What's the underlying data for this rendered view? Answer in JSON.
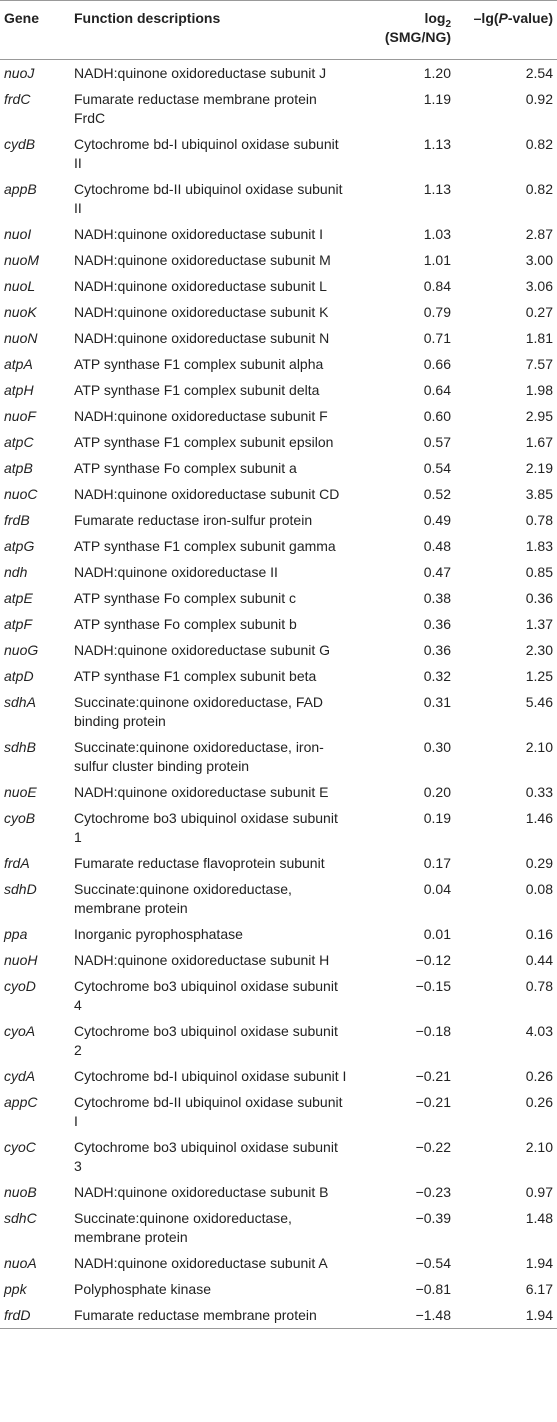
{
  "table": {
    "header": {
      "gene": "Gene",
      "function": "Function descriptions",
      "log2": {
        "base": "log",
        "sub": "2",
        "rest": "(SMG/NG)"
      },
      "p": {
        "pre": "–lg(",
        "italic": "P",
        "post": "-value)"
      }
    },
    "rows": [
      [
        "nuoJ",
        "NADH:quinone oxidoreductase subunit J",
        "1.20",
        "2.54"
      ],
      [
        "frdC",
        "Fumarate reductase membrane protein FrdC",
        "1.19",
        "0.92"
      ],
      [
        "cydB",
        "Cytochrome bd-I ubiquinol oxidase subunit II",
        "1.13",
        "0.82"
      ],
      [
        "appB",
        "Cytochrome bd-II ubiquinol oxidase subunit II",
        "1.13",
        "0.82"
      ],
      [
        "nuoI",
        "NADH:quinone oxidoreductase subunit I",
        "1.03",
        "2.87"
      ],
      [
        "nuoM",
        "NADH:quinone oxidoreductase subunit M",
        "1.01",
        "3.00"
      ],
      [
        "nuoL",
        "NADH:quinone oxidoreductase subunit L",
        "0.84",
        "3.06"
      ],
      [
        "nuoK",
        "NADH:quinone oxidoreductase subunit K",
        "0.79",
        "0.27"
      ],
      [
        "nuoN",
        "NADH:quinone oxidoreductase subunit N",
        "0.71",
        "1.81"
      ],
      [
        "atpA",
        "ATP synthase F1 complex subunit alpha",
        "0.66",
        "7.57"
      ],
      [
        "atpH",
        "ATP synthase F1 complex subunit delta",
        "0.64",
        "1.98"
      ],
      [
        "nuoF",
        "NADH:quinone oxidoreductase subunit F",
        "0.60",
        "2.95"
      ],
      [
        "atpC",
        "ATP synthase F1 complex subunit epsilon",
        "0.57",
        "1.67"
      ],
      [
        "atpB",
        "ATP synthase Fo complex subunit a",
        "0.54",
        "2.19"
      ],
      [
        "nuoC",
        "NADH:quinone oxidoreductase subunit CD",
        "0.52",
        "3.85"
      ],
      [
        "frdB",
        "Fumarate reductase iron-sulfur protein",
        "0.49",
        "0.78"
      ],
      [
        "atpG",
        "ATP synthase F1 complex subunit gamma",
        "0.48",
        "1.83"
      ],
      [
        "ndh",
        "NADH:quinone oxidoreductase II",
        "0.47",
        "0.85"
      ],
      [
        "atpE",
        "ATP synthase Fo complex subunit c",
        "0.38",
        "0.36"
      ],
      [
        "atpF",
        "ATP synthase Fo complex subunit b",
        "0.36",
        "1.37"
      ],
      [
        "nuoG",
        "NADH:quinone oxidoreductase subunit G",
        "0.36",
        "2.30"
      ],
      [
        "atpD",
        "ATP synthase F1 complex subunit beta",
        "0.32",
        "1.25"
      ],
      [
        "sdhA",
        "Succinate:quinone oxidoreductase, FAD binding protein",
        "0.31",
        "5.46"
      ],
      [
        "sdhB",
        "Succinate:quinone oxidoreductase, iron-sulfur cluster binding protein",
        "0.30",
        "2.10"
      ],
      [
        "nuoE",
        "NADH:quinone oxidoreductase subunit E",
        "0.20",
        "0.33"
      ],
      [
        "cyoB",
        "Cytochrome bo3 ubiquinol oxidase subunit 1",
        "0.19",
        "1.46"
      ],
      [
        "frdA",
        "Fumarate reductase flavoprotein subunit",
        "0.17",
        "0.29"
      ],
      [
        "sdhD",
        "Succinate:quinone oxidoreductase, membrane protein",
        "0.04",
        "0.08"
      ],
      [
        "ppa",
        "Inorganic pyrophosphatase",
        "0.01",
        "0.16"
      ],
      [
        "nuoH",
        "NADH:quinone oxidoreductase subunit H",
        "−0.12",
        "0.44"
      ],
      [
        "cyoD",
        "Cytochrome bo3 ubiquinol oxidase subunit 4",
        "−0.15",
        "0.78"
      ],
      [
        "cyoA",
        "Cytochrome bo3 ubiquinol oxidase subunit 2",
        "−0.18",
        "4.03"
      ],
      [
        "cydA",
        "Cytochrome bd-I ubiquinol oxidase subunit I",
        "−0.21",
        "0.26"
      ],
      [
        "appC",
        "Cytochrome bd-II ubiquinol oxidase subunit I",
        "−0.21",
        "0.26"
      ],
      [
        "cyoC",
        "Cytochrome bo3 ubiquinol oxidase subunit 3",
        "−0.22",
        "2.10"
      ],
      [
        "nuoB",
        "NADH:quinone oxidoreductase subunit B",
        "−0.23",
        "0.97"
      ],
      [
        "sdhC",
        "Succinate:quinone oxidoreductase, membrane protein",
        "−0.39",
        "1.48"
      ],
      [
        "nuoA",
        "NADH:quinone oxidoreductase subunit A",
        "−0.54",
        "1.94"
      ],
      [
        "ppk",
        "Polyphosphate kinase",
        "−0.81",
        "6.17"
      ],
      [
        "frdD",
        "Fumarate reductase membrane protein",
        "−1.48",
        "1.94"
      ]
    ]
  }
}
